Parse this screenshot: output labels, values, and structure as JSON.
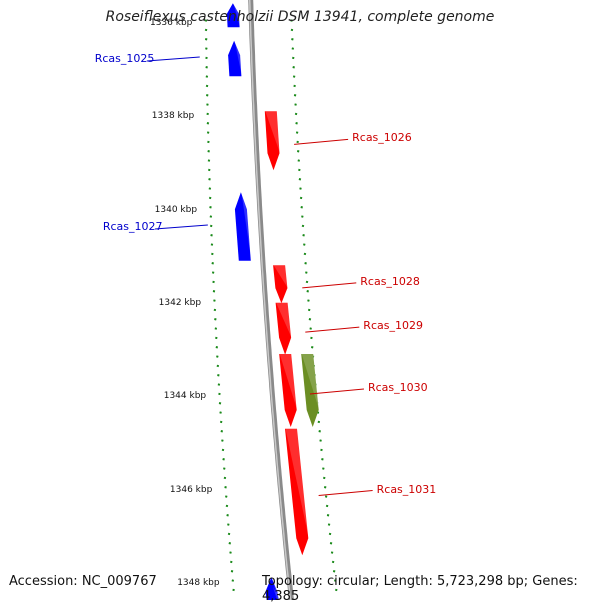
{
  "title": "Roseiflexus castenholzii DSM 13941, complete genome",
  "footer": {
    "accession": "Accession: NC_009767",
    "topology": "Topology: circular; Length: 5,723,298 bp; Genes: 4,385"
  },
  "colors": {
    "backbone": "#8a8a8a",
    "minus_strand": "#0000ff",
    "plus_strand": "#ff0000",
    "other_feature": "#6b8e23",
    "tick": "#1a8a1a",
    "minus_label": "#0000cc",
    "plus_label": "#cc0000"
  },
  "scale": {
    "unit": "kbp",
    "ticks": [
      {
        "kbp": 1336,
        "label": "1336 kbp"
      },
      {
        "kbp": 1338,
        "label": "1338 kbp"
      },
      {
        "kbp": 1340,
        "label": "1340 kbp"
      },
      {
        "kbp": 1342,
        "label": "1342 kbp"
      },
      {
        "kbp": 1344,
        "label": "1344 kbp"
      },
      {
        "kbp": 1346,
        "label": "1346 kbp"
      },
      {
        "kbp": 1348,
        "label": "1348 kbp"
      }
    ]
  },
  "genes": [
    {
      "name": "Rcas_1025",
      "strand": "minus",
      "start": 1336.4,
      "end": 1337.1,
      "labeled": true
    },
    {
      "name": "Rcas_1026",
      "strand": "plus",
      "start": 1337.85,
      "end": 1339.05,
      "labeled": true
    },
    {
      "name": "Rcas_1027",
      "strand": "minus",
      "start": 1339.65,
      "end": 1341.05,
      "labeled": true
    },
    {
      "name": "Rcas_1028",
      "strand": "plus",
      "start": 1341.15,
      "end": 1341.9,
      "labeled": true
    },
    {
      "name": "Rcas_1029",
      "strand": "plus",
      "start": 1341.95,
      "end": 1343.0,
      "labeled": true
    },
    {
      "name": "Rcas_1030",
      "strand": "plus",
      "start": 1343.05,
      "end": 1344.55,
      "labeled": true
    },
    {
      "name": "Rcas_1031",
      "strand": "plus",
      "start": 1344.65,
      "end": 1347.3,
      "labeled": true
    },
    {
      "name": "",
      "strand": "minus",
      "start": 1335.6,
      "end": 1336.05,
      "labeled": false
    },
    {
      "name": "",
      "strand": "minus",
      "start": 1347.9,
      "end": 1348.6,
      "labeled": false
    },
    {
      "name": "",
      "strand": "minus",
      "start": 1348.1,
      "end": 1348.6,
      "labeled": false
    }
  ],
  "other_features": [
    {
      "strand": "plus",
      "start": 1343.05,
      "end": 1344.55
    }
  ]
}
